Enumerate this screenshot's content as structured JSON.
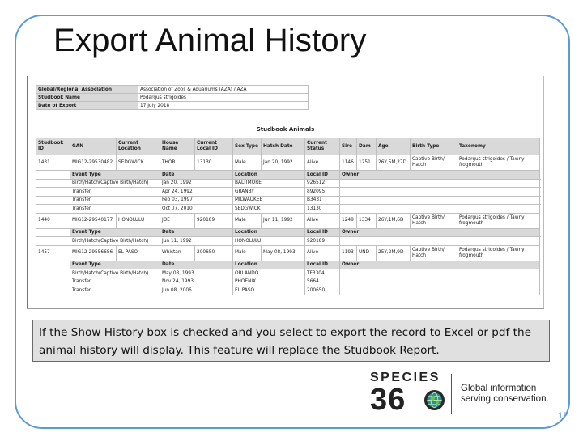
{
  "slide": {
    "title": "Export Animal History",
    "caption": "If the Show History box is checked and you select to export the record to Excel or pdf the animal history will display. This feature will replace the Studbook Report.",
    "page_number": "12"
  },
  "logo": {
    "word": "SPECIES",
    "number_a": "36",
    "tagline_1": "Global information",
    "tagline_2": "serving conservation."
  },
  "report": {
    "meta": [
      {
        "label": "Global/Regional Association",
        "value": "Association of Zoos & Aquariums (AZA) / AZA"
      },
      {
        "label": "Studbook Name",
        "value": "Podargus strigoides"
      },
      {
        "label": "Date of Export",
        "value": "17 July 2018"
      }
    ],
    "section_title": "Studbook Animals",
    "animal_headers": [
      "Studbook ID",
      "GAN",
      "Current Location",
      "House Name",
      "Current Local ID",
      "Sex Type",
      "Hatch Date",
      "Current Status",
      "Sire",
      "Dam",
      "Age",
      "Birth Type",
      "Taxonomy"
    ],
    "event_headers": [
      "Event Type",
      "Date",
      "Location",
      "Local ID",
      "Owner"
    ],
    "animals": [
      {
        "row": [
          "1431",
          "MIG12-29530482",
          "SEDGWICK",
          "THOR",
          "13130",
          "Male",
          "Jan 20, 1992",
          "Alive",
          "1146",
          "1251",
          "26Y,5M,27D",
          "Captive Birth/ Hatch",
          "Podargus strigoides / Tawny frogmouth"
        ],
        "events": [
          [
            "Birth/Hatch(Captive Birth/Hatch)",
            "Jan 20, 1992",
            "BALTIMORE",
            "926512",
            ""
          ],
          [
            "Transfer",
            "Apr 24, 1992",
            "GRANBY",
            "892095",
            ""
          ],
          [
            "Transfer",
            "Feb 03, 1997",
            "MILWAUKEE",
            "B3431",
            ""
          ],
          [
            "Transfer",
            "Oct 07, 2010",
            "SEDGWICK",
            "13130",
            ""
          ]
        ]
      },
      {
        "row": [
          "1440",
          "MIG12-29540177",
          "HONOLULU",
          "JOE",
          "920189",
          "Male",
          "Jun 11, 1992",
          "Alive",
          "1248",
          "1334",
          "26Y,1M,6D",
          "Captive Birth/ Hatch",
          "Podargus strigoides / Tawny frogmouth"
        ],
        "events": [
          [
            "Birth/Hatch(Captive Birth/Hatch)",
            "Jun 11, 1992",
            "HONOLULU",
            "920189",
            ""
          ]
        ]
      },
      {
        "row": [
          "1457",
          "MIG12-29556686",
          "EL PASO",
          "Whistan",
          "200650",
          "Male",
          "May 08, 1993",
          "Alive",
          "1193",
          "UND",
          "25Y,2M,9D",
          "Captive Birth/ Hatch",
          "Podargus strigoides / Tawny frogmouth"
        ],
        "events": [
          [
            "Birth/Hatch(Captive Birth/Hatch)",
            "May 08, 1993",
            "ORLANDO",
            "TF3304",
            ""
          ],
          [
            "Transfer",
            "Nov 24, 1993",
            "PHOENIX",
            "5664",
            ""
          ],
          [
            "Transfer",
            "Jun 08, 2006",
            "EL PASO",
            "200650",
            ""
          ]
        ]
      }
    ]
  },
  "colors": {
    "frame": "#5b9bd5",
    "header_fill": "#d9d9d9",
    "caption_fill": "#e0e0e0"
  }
}
